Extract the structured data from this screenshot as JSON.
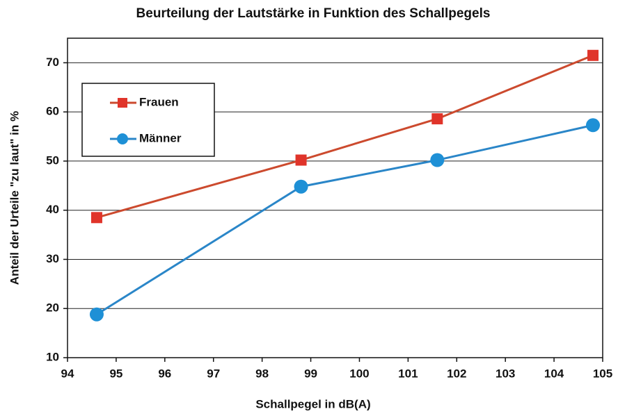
{
  "chart_data": {
    "type": "line",
    "title": "Beurteilung der Lautstärke in Funktion des Schallpegels",
    "x_label": "Schallpegel in dB(A)",
    "y_label": "Anteil der Urteile \"zu laut\" in %",
    "x": [
      94.6,
      98.8,
      101.6,
      104.8
    ],
    "series": [
      {
        "name": "Frauen",
        "color": "#e0342a",
        "line_color": "#cc4a2e",
        "marker": "square",
        "values": [
          38.5,
          50.2,
          58.6,
          71.5
        ]
      },
      {
        "name": "Männer",
        "color": "#1e90d6",
        "line_color": "#2a86c8",
        "marker": "circle",
        "values": [
          18.8,
          44.8,
          50.2,
          57.3
        ]
      }
    ],
    "xlim": [
      94,
      105
    ],
    "xticks": [
      94,
      95,
      96,
      97,
      98,
      99,
      100,
      101,
      102,
      103,
      104,
      105
    ],
    "ylim": [
      10,
      75
    ],
    "yticks": [
      10,
      20,
      30,
      40,
      50,
      60,
      70
    ],
    "grid": true,
    "legend": "upper left"
  }
}
